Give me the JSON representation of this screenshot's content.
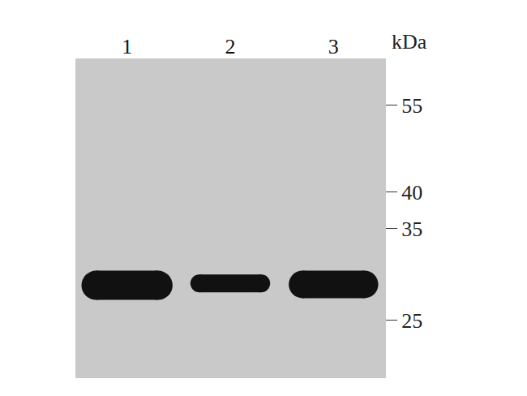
{
  "chart_data": {
    "type": "blot",
    "categories": [
      "1",
      "2",
      "3"
    ],
    "values": [
      28.4,
      28.6,
      28.5
    ],
    "y_label": "kDa",
    "log": "y",
    "ylim": [
      20.2,
      65.3
    ],
    "yticks": [
      25,
      35,
      40,
      55
    ],
    "color": "#111111",
    "grid": false
  }
}
